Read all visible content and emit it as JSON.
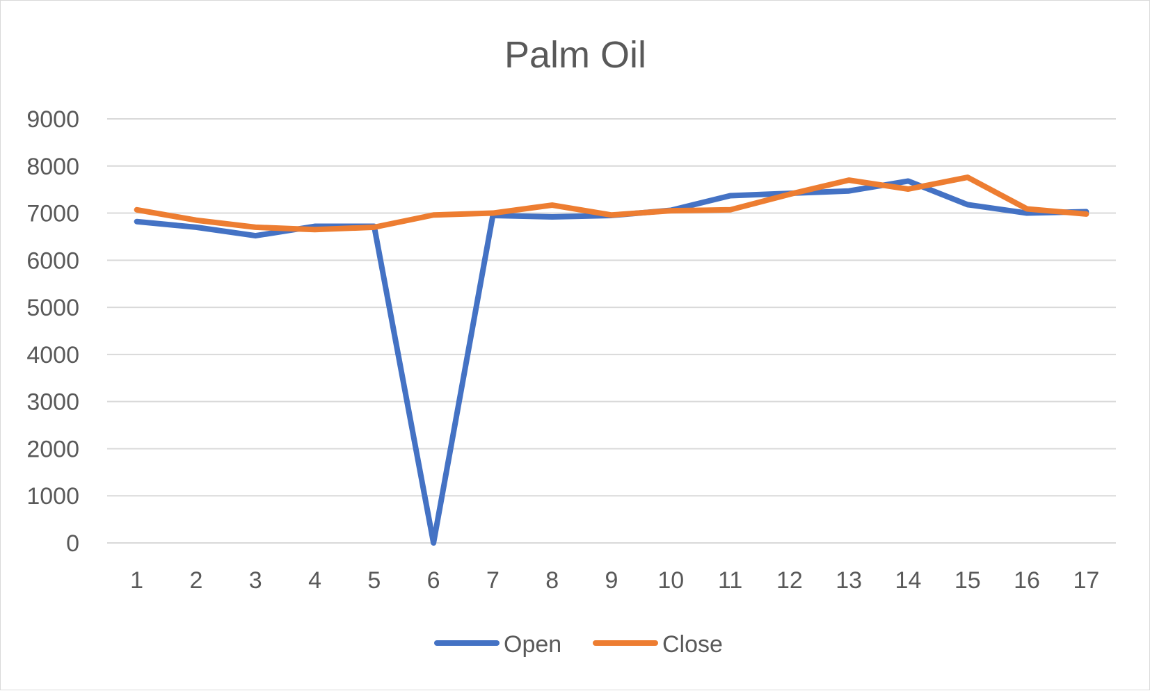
{
  "chart_data": {
    "type": "line",
    "title": "Palm Oil",
    "xlabel": "",
    "ylabel": "",
    "categories": [
      "1",
      "2",
      "3",
      "4",
      "5",
      "6",
      "7",
      "8",
      "9",
      "10",
      "11",
      "12",
      "13",
      "14",
      "15",
      "16",
      "17"
    ],
    "ylim": [
      0,
      9000
    ],
    "yticks": [
      0,
      1000,
      2000,
      3000,
      4000,
      5000,
      6000,
      7000,
      8000,
      9000
    ],
    "grid": true,
    "legend_position": "bottom",
    "series": [
      {
        "name": "Open",
        "color": "#4472c4",
        "values": [
          6820,
          6700,
          6520,
          6720,
          6720,
          0,
          6950,
          6920,
          6950,
          7060,
          7370,
          7420,
          7470,
          7680,
          7180,
          7000,
          7030
        ]
      },
      {
        "name": "Close",
        "color": "#ed7d31",
        "values": [
          7070,
          6850,
          6700,
          6650,
          6700,
          6960,
          7000,
          7170,
          6960,
          7050,
          7070,
          7400,
          7700,
          7510,
          7760,
          7090,
          6980
        ]
      }
    ]
  }
}
